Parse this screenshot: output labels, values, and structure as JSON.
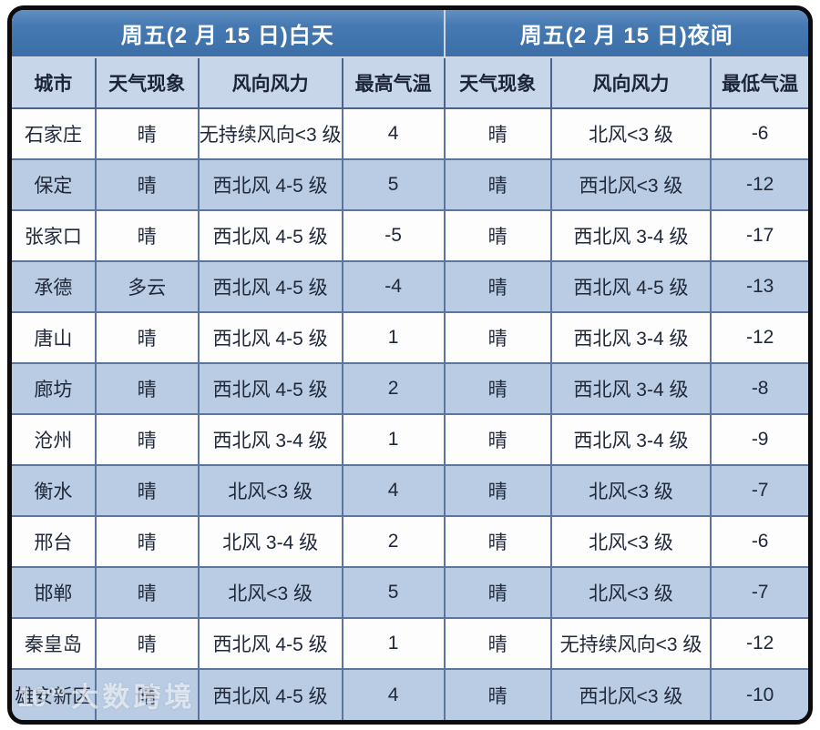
{
  "table": {
    "day_header": "周五(2 月 15 日)白天",
    "night_header": "周五(2 月 15 日)夜间",
    "columns": [
      "城市",
      "天气现象",
      "风向风力",
      "最高气温",
      "天气现象",
      "风向风力",
      "最低气温"
    ],
    "rows": [
      {
        "city": "石家庄",
        "day_weather": "晴",
        "day_wind": "无持续风向<3 级",
        "day_high": "4",
        "night_weather": "晴",
        "night_wind": "北风<3 级",
        "night_low": "-6"
      },
      {
        "city": "保定",
        "day_weather": "晴",
        "day_wind": "西北风 4-5 级",
        "day_high": "5",
        "night_weather": "晴",
        "night_wind": "西北风<3 级",
        "night_low": "-12"
      },
      {
        "city": "张家口",
        "day_weather": "晴",
        "day_wind": "西北风 4-5 级",
        "day_high": "-5",
        "night_weather": "晴",
        "night_wind": "西北风 3-4 级",
        "night_low": "-17"
      },
      {
        "city": "承德",
        "day_weather": "多云",
        "day_wind": "西北风 4-5 级",
        "day_high": "-4",
        "night_weather": "晴",
        "night_wind": "西北风 4-5 级",
        "night_low": "-13"
      },
      {
        "city": "唐山",
        "day_weather": "晴",
        "day_wind": "西北风 4-5 级",
        "day_high": "1",
        "night_weather": "晴",
        "night_wind": "西北风 3-4 级",
        "night_low": "-12"
      },
      {
        "city": "廊坊",
        "day_weather": "晴",
        "day_wind": "西北风 4-5 级",
        "day_high": "2",
        "night_weather": "晴",
        "night_wind": "西北风 3-4 级",
        "night_low": "-8"
      },
      {
        "city": "沧州",
        "day_weather": "晴",
        "day_wind": "西北风 3-4 级",
        "day_high": "1",
        "night_weather": "晴",
        "night_wind": "西北风 3-4 级",
        "night_low": "-9"
      },
      {
        "city": "衡水",
        "day_weather": "晴",
        "day_wind": "北风<3 级",
        "day_high": "4",
        "night_weather": "晴",
        "night_wind": "北风<3 级",
        "night_low": "-7"
      },
      {
        "city": "邢台",
        "day_weather": "晴",
        "day_wind": "北风 3-4 级",
        "day_high": "2",
        "night_weather": "晴",
        "night_wind": "北风<3 级",
        "night_low": "-6"
      },
      {
        "city": "邯郸",
        "day_weather": "晴",
        "day_wind": "北风<3 级",
        "day_high": "5",
        "night_weather": "晴",
        "night_wind": "北风<3 级",
        "night_low": "-7"
      },
      {
        "city": "秦皇岛",
        "day_weather": "晴",
        "day_wind": "西北风 4-5 级",
        "day_high": "1",
        "night_weather": "晴",
        "night_wind": "无持续风向<3 级",
        "night_low": "-12"
      },
      {
        "city": "雄安新区",
        "day_weather": "晴",
        "day_wind": "西北风 4-5 级",
        "day_high": "4",
        "night_weather": "晴",
        "night_wind": "西北风<3 级",
        "night_low": "-10"
      }
    ]
  },
  "watermark": {
    "logo": "10°°",
    "text": "大数跨境"
  },
  "colors": {
    "header_bg": "#3c6fa7",
    "subheader_bg": "#c8d6ea",
    "band_row_bg": "#b9cce3",
    "grid_line": "#5b74a0",
    "frame": "#0c0c0e"
  }
}
